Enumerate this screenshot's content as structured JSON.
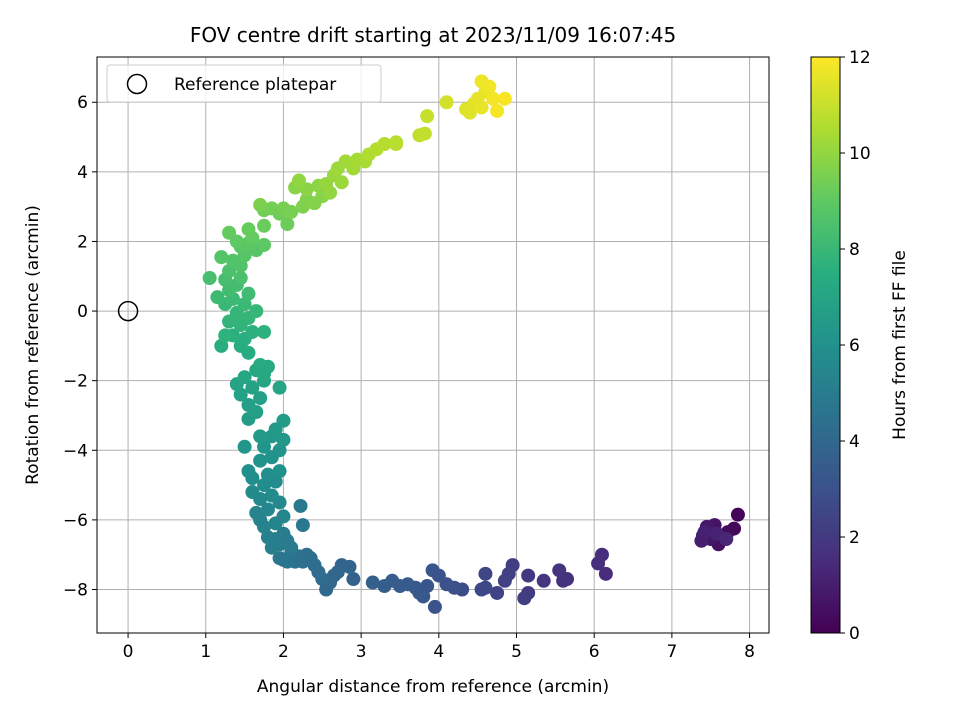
{
  "chart_data": {
    "type": "scatter",
    "title": "FOV centre drift starting at 2023/11/09 16:07:45",
    "xlabel": "Angular distance from reference (arcmin)",
    "ylabel": "Rotation from reference (arcmin)",
    "xlim": [
      -0.4,
      8.25
    ],
    "ylim": [
      -9.25,
      7.3
    ],
    "x_ticks": [
      0,
      1,
      2,
      3,
      4,
      5,
      6,
      7,
      8
    ],
    "y_ticks": [
      -8,
      -6,
      -4,
      -2,
      0,
      2,
      4,
      6
    ],
    "grid": true,
    "legend": {
      "placement": "top-left",
      "entries": [
        "Reference platepar"
      ]
    },
    "reference_point": {
      "x": 0,
      "y": 0
    },
    "colorbar": {
      "label": "Hours from first FF file",
      "colormap": "viridis",
      "range": [
        0,
        12
      ],
      "ticks": [
        0,
        2,
        4,
        6,
        8,
        10,
        12
      ]
    },
    "points": [
      {
        "x": 7.85,
        "y": -5.85,
        "c": 0.1
      },
      {
        "x": 7.8,
        "y": -6.25,
        "c": 0.2
      },
      {
        "x": 7.72,
        "y": -6.35,
        "c": 0.3
      },
      {
        "x": 7.65,
        "y": -6.5,
        "c": 0.4
      },
      {
        "x": 7.6,
        "y": -6.7,
        "c": 0.5
      },
      {
        "x": 7.55,
        "y": -6.15,
        "c": 0.6
      },
      {
        "x": 7.5,
        "y": -6.55,
        "c": 0.7
      },
      {
        "x": 7.45,
        "y": -6.2,
        "c": 0.8
      },
      {
        "x": 7.4,
        "y": -6.45,
        "c": 0.9
      },
      {
        "x": 7.38,
        "y": -6.6,
        "c": 1.0
      },
      {
        "x": 7.42,
        "y": -6.35,
        "c": 1.1
      },
      {
        "x": 7.58,
        "y": -6.4,
        "c": 1.2
      },
      {
        "x": 7.7,
        "y": -6.55,
        "c": 1.3
      },
      {
        "x": 6.15,
        "y": -7.55,
        "c": 1.5
      },
      {
        "x": 6.1,
        "y": -7.0,
        "c": 1.55
      },
      {
        "x": 6.05,
        "y": -7.25,
        "c": 1.6
      },
      {
        "x": 5.65,
        "y": -7.7,
        "c": 1.7
      },
      {
        "x": 5.6,
        "y": -7.75,
        "c": 1.75
      },
      {
        "x": 5.55,
        "y": -7.45,
        "c": 1.8
      },
      {
        "x": 5.35,
        "y": -7.75,
        "c": 1.9
      },
      {
        "x": 5.15,
        "y": -7.6,
        "c": 2.0
      },
      {
        "x": 5.15,
        "y": -8.1,
        "c": 2.05
      },
      {
        "x": 5.1,
        "y": -8.25,
        "c": 2.1
      },
      {
        "x": 4.95,
        "y": -7.3,
        "c": 2.2
      },
      {
        "x": 4.9,
        "y": -7.55,
        "c": 2.25
      },
      {
        "x": 4.85,
        "y": -7.75,
        "c": 2.3
      },
      {
        "x": 4.75,
        "y": -8.1,
        "c": 2.4
      },
      {
        "x": 4.6,
        "y": -7.55,
        "c": 2.5
      },
      {
        "x": 4.6,
        "y": -7.95,
        "c": 2.55
      },
      {
        "x": 4.55,
        "y": -8.0,
        "c": 2.6
      },
      {
        "x": 4.3,
        "y": -8.0,
        "c": 2.8
      },
      {
        "x": 4.2,
        "y": -7.95,
        "c": 2.9
      },
      {
        "x": 4.1,
        "y": -7.85,
        "c": 3.0
      },
      {
        "x": 4.0,
        "y": -7.6,
        "c": 3.05
      },
      {
        "x": 3.95,
        "y": -8.5,
        "c": 3.1
      },
      {
        "x": 3.92,
        "y": -7.45,
        "c": 3.15
      },
      {
        "x": 3.85,
        "y": -7.9,
        "c": 3.2
      },
      {
        "x": 3.8,
        "y": -8.2,
        "c": 3.25
      },
      {
        "x": 3.75,
        "y": -8.1,
        "c": 3.3
      },
      {
        "x": 3.7,
        "y": -7.95,
        "c": 3.35
      },
      {
        "x": 3.6,
        "y": -7.85,
        "c": 3.4
      },
      {
        "x": 3.5,
        "y": -7.9,
        "c": 3.45
      },
      {
        "x": 3.4,
        "y": -7.75,
        "c": 3.5
      },
      {
        "x": 3.3,
        "y": -7.9,
        "c": 3.55
      },
      {
        "x": 3.15,
        "y": -7.8,
        "c": 3.6
      },
      {
        "x": 2.9,
        "y": -7.7,
        "c": 3.8
      },
      {
        "x": 2.85,
        "y": -7.35,
        "c": 3.85
      },
      {
        "x": 2.75,
        "y": -7.3,
        "c": 3.9
      },
      {
        "x": 2.7,
        "y": -7.5,
        "c": 3.95
      },
      {
        "x": 2.65,
        "y": -7.6,
        "c": 4.0
      },
      {
        "x": 2.6,
        "y": -7.8,
        "c": 4.05
      },
      {
        "x": 2.55,
        "y": -8.0,
        "c": 4.1
      },
      {
        "x": 2.5,
        "y": -7.7,
        "c": 4.15
      },
      {
        "x": 2.45,
        "y": -7.5,
        "c": 4.2
      },
      {
        "x": 2.4,
        "y": -7.3,
        "c": 4.25
      },
      {
        "x": 2.35,
        "y": -7.1,
        "c": 4.3
      },
      {
        "x": 2.3,
        "y": -7.0,
        "c": 4.35
      },
      {
        "x": 2.25,
        "y": -7.2,
        "c": 4.4
      },
      {
        "x": 2.2,
        "y": -7.05,
        "c": 4.45
      },
      {
        "x": 2.15,
        "y": -7.2,
        "c": 4.5
      },
      {
        "x": 2.1,
        "y": -6.95,
        "c": 4.55
      },
      {
        "x": 2.05,
        "y": -7.2,
        "c": 4.6
      },
      {
        "x": 2.0,
        "y": -7.15,
        "c": 4.65
      },
      {
        "x": 1.95,
        "y": -7.1,
        "c": 4.7
      },
      {
        "x": 2.25,
        "y": -6.15,
        "c": 4.8
      },
      {
        "x": 2.22,
        "y": -5.6,
        "c": 4.85
      },
      {
        "x": 2.1,
        "y": -6.8,
        "c": 4.9
      },
      {
        "x": 2.05,
        "y": -6.6,
        "c": 4.95
      },
      {
        "x": 2.0,
        "y": -6.4,
        "c": 5.0
      },
      {
        "x": 1.95,
        "y": -6.7,
        "c": 5.05
      },
      {
        "x": 1.9,
        "y": -6.55,
        "c": 5.1
      },
      {
        "x": 1.85,
        "y": -6.8,
        "c": 5.15
      },
      {
        "x": 1.8,
        "y": -6.5,
        "c": 5.2
      },
      {
        "x": 1.75,
        "y": -6.2,
        "c": 5.25
      },
      {
        "x": 1.7,
        "y": -6.0,
        "c": 5.3
      },
      {
        "x": 1.65,
        "y": -5.8,
        "c": 5.35
      },
      {
        "x": 1.9,
        "y": -6.1,
        "c": 5.4
      },
      {
        "x": 2.0,
        "y": -5.9,
        "c": 5.45
      },
      {
        "x": 1.8,
        "y": -5.7,
        "c": 5.5
      },
      {
        "x": 1.95,
        "y": -5.5,
        "c": 5.55
      },
      {
        "x": 1.7,
        "y": -5.4,
        "c": 5.6
      },
      {
        "x": 1.85,
        "y": -5.3,
        "c": 5.65
      },
      {
        "x": 1.6,
        "y": -5.2,
        "c": 5.7
      },
      {
        "x": 1.75,
        "y": -5.0,
        "c": 5.75
      },
      {
        "x": 1.9,
        "y": -4.9,
        "c": 5.8
      },
      {
        "x": 1.6,
        "y": -4.8,
        "c": 5.85
      },
      {
        "x": 1.8,
        "y": -4.7,
        "c": 5.9
      },
      {
        "x": 1.55,
        "y": -4.6,
        "c": 5.95
      },
      {
        "x": 1.95,
        "y": -4.6,
        "c": 6.0
      },
      {
        "x": 1.7,
        "y": -4.3,
        "c": 6.05
      },
      {
        "x": 1.85,
        "y": -4.2,
        "c": 6.1
      },
      {
        "x": 1.95,
        "y": -4.0,
        "c": 6.15
      },
      {
        "x": 1.75,
        "y": -3.9,
        "c": 6.2
      },
      {
        "x": 1.5,
        "y": -3.9,
        "c": 6.25
      },
      {
        "x": 1.85,
        "y": -3.6,
        "c": 6.3
      },
      {
        "x": 2.0,
        "y": -3.7,
        "c": 6.35
      },
      {
        "x": 1.7,
        "y": -3.6,
        "c": 6.4
      },
      {
        "x": 1.9,
        "y": -3.4,
        "c": 6.45
      },
      {
        "x": 2.0,
        "y": -3.15,
        "c": 6.5
      },
      {
        "x": 1.55,
        "y": -3.1,
        "c": 6.55
      },
      {
        "x": 1.65,
        "y": -2.9,
        "c": 6.7
      },
      {
        "x": 1.7,
        "y": -2.5,
        "c": 6.75
      },
      {
        "x": 1.55,
        "y": -2.7,
        "c": 6.8
      },
      {
        "x": 1.45,
        "y": -2.4,
        "c": 6.85
      },
      {
        "x": 1.6,
        "y": -2.2,
        "c": 6.9
      },
      {
        "x": 1.4,
        "y": -2.1,
        "c": 6.95
      },
      {
        "x": 1.95,
        "y": -2.2,
        "c": 7.0
      },
      {
        "x": 1.75,
        "y": -2.0,
        "c": 7.05
      },
      {
        "x": 1.5,
        "y": -1.9,
        "c": 7.1
      },
      {
        "x": 1.65,
        "y": -1.7,
        "c": 7.15
      },
      {
        "x": 1.75,
        "y": -1.8,
        "c": 7.2
      },
      {
        "x": 1.8,
        "y": -1.6,
        "c": 7.25
      },
      {
        "x": 1.7,
        "y": -1.55,
        "c": 7.3
      },
      {
        "x": 1.55,
        "y": -1.2,
        "c": 7.35
      },
      {
        "x": 1.45,
        "y": -1.0,
        "c": 7.4
      },
      {
        "x": 1.2,
        "y": -1.0,
        "c": 7.45
      },
      {
        "x": 1.5,
        "y": -0.8,
        "c": 7.5
      },
      {
        "x": 1.35,
        "y": -0.7,
        "c": 7.55
      },
      {
        "x": 1.6,
        "y": -0.6,
        "c": 7.6
      },
      {
        "x": 1.75,
        "y": -0.6,
        "c": 7.65
      },
      {
        "x": 1.25,
        "y": -0.7,
        "c": 7.7
      },
      {
        "x": 1.45,
        "y": -0.4,
        "c": 7.75
      },
      {
        "x": 1.3,
        "y": -0.3,
        "c": 7.8
      },
      {
        "x": 1.55,
        "y": -0.2,
        "c": 7.85
      },
      {
        "x": 1.4,
        "y": -0.05,
        "c": 7.9
      },
      {
        "x": 1.65,
        "y": 0.0,
        "c": 7.95
      },
      {
        "x": 1.25,
        "y": 0.2,
        "c": 8.0
      },
      {
        "x": 1.5,
        "y": 0.2,
        "c": 8.05
      },
      {
        "x": 1.35,
        "y": 0.35,
        "c": 8.1
      },
      {
        "x": 1.15,
        "y": 0.4,
        "c": 8.15
      },
      {
        "x": 1.55,
        "y": 0.5,
        "c": 8.2
      },
      {
        "x": 1.3,
        "y": 0.6,
        "c": 8.25
      },
      {
        "x": 1.4,
        "y": 0.75,
        "c": 8.3
      },
      {
        "x": 1.25,
        "y": 0.9,
        "c": 8.35
      },
      {
        "x": 1.05,
        "y": 0.95,
        "c": 8.4
      },
      {
        "x": 1.45,
        "y": 0.95,
        "c": 8.45
      },
      {
        "x": 1.3,
        "y": 1.15,
        "c": 8.5
      },
      {
        "x": 1.45,
        "y": 1.3,
        "c": 8.6
      },
      {
        "x": 1.35,
        "y": 1.45,
        "c": 8.65
      },
      {
        "x": 1.2,
        "y": 1.55,
        "c": 8.7
      },
      {
        "x": 1.5,
        "y": 1.6,
        "c": 8.75
      },
      {
        "x": 1.65,
        "y": 1.75,
        "c": 8.8
      },
      {
        "x": 1.45,
        "y": 1.85,
        "c": 8.85
      },
      {
        "x": 1.55,
        "y": 1.95,
        "c": 8.9
      },
      {
        "x": 1.75,
        "y": 1.9,
        "c": 8.95
      },
      {
        "x": 1.4,
        "y": 2.0,
        "c": 9.0
      },
      {
        "x": 1.6,
        "y": 2.1,
        "c": 9.05
      },
      {
        "x": 1.3,
        "y": 2.25,
        "c": 9.1
      },
      {
        "x": 1.55,
        "y": 2.35,
        "c": 9.15
      },
      {
        "x": 1.75,
        "y": 2.45,
        "c": 9.2
      },
      {
        "x": 2.05,
        "y": 2.5,
        "c": 9.25
      },
      {
        "x": 1.95,
        "y": 2.8,
        "c": 9.3
      },
      {
        "x": 1.75,
        "y": 2.9,
        "c": 9.35
      },
      {
        "x": 1.85,
        "y": 2.95,
        "c": 9.4
      },
      {
        "x": 2.0,
        "y": 2.95,
        "c": 9.45
      },
      {
        "x": 2.1,
        "y": 2.85,
        "c": 9.5
      },
      {
        "x": 1.7,
        "y": 3.05,
        "c": 9.55
      },
      {
        "x": 2.25,
        "y": 3.0,
        "c": 9.6
      },
      {
        "x": 2.3,
        "y": 3.2,
        "c": 9.65
      },
      {
        "x": 2.4,
        "y": 3.1,
        "c": 9.7
      },
      {
        "x": 2.5,
        "y": 3.3,
        "c": 9.75
      },
      {
        "x": 2.15,
        "y": 3.55,
        "c": 9.8
      },
      {
        "x": 2.3,
        "y": 3.5,
        "c": 9.85
      },
      {
        "x": 2.45,
        "y": 3.6,
        "c": 9.9
      },
      {
        "x": 2.2,
        "y": 3.75,
        "c": 9.95
      },
      {
        "x": 2.6,
        "y": 3.4,
        "c": 10.0
      },
      {
        "x": 2.55,
        "y": 3.65,
        "c": 10.05
      },
      {
        "x": 2.65,
        "y": 3.9,
        "c": 10.1
      },
      {
        "x": 2.75,
        "y": 3.7,
        "c": 10.15
      },
      {
        "x": 2.7,
        "y": 4.1,
        "c": 10.2
      },
      {
        "x": 2.8,
        "y": 4.3,
        "c": 10.25
      },
      {
        "x": 2.9,
        "y": 4.1,
        "c": 10.3
      },
      {
        "x": 2.95,
        "y": 4.35,
        "c": 10.35
      },
      {
        "x": 3.05,
        "y": 4.3,
        "c": 10.4
      },
      {
        "x": 3.1,
        "y": 4.5,
        "c": 10.55
      },
      {
        "x": 3.2,
        "y": 4.65,
        "c": 10.6
      },
      {
        "x": 3.3,
        "y": 4.8,
        "c": 10.65
      },
      {
        "x": 3.45,
        "y": 4.85,
        "c": 10.7
      },
      {
        "x": 3.45,
        "y": 4.8,
        "c": 10.75
      },
      {
        "x": 3.75,
        "y": 5.05,
        "c": 10.85
      },
      {
        "x": 3.82,
        "y": 5.1,
        "c": 10.9
      },
      {
        "x": 3.85,
        "y": 5.6,
        "c": 11.0
      },
      {
        "x": 4.1,
        "y": 6.0,
        "c": 11.2
      },
      {
        "x": 4.35,
        "y": 5.8,
        "c": 11.4
      },
      {
        "x": 4.4,
        "y": 5.7,
        "c": 11.45
      },
      {
        "x": 4.45,
        "y": 5.95,
        "c": 11.5
      },
      {
        "x": 4.5,
        "y": 6.1,
        "c": 11.55
      },
      {
        "x": 4.55,
        "y": 5.85,
        "c": 11.6
      },
      {
        "x": 4.6,
        "y": 6.3,
        "c": 11.65
      },
      {
        "x": 4.55,
        "y": 6.6,
        "c": 11.7
      },
      {
        "x": 4.65,
        "y": 6.45,
        "c": 11.75
      },
      {
        "x": 4.7,
        "y": 6.1,
        "c": 11.8
      },
      {
        "x": 4.75,
        "y": 5.75,
        "c": 11.85
      },
      {
        "x": 4.85,
        "y": 6.1,
        "c": 11.9
      }
    ]
  }
}
